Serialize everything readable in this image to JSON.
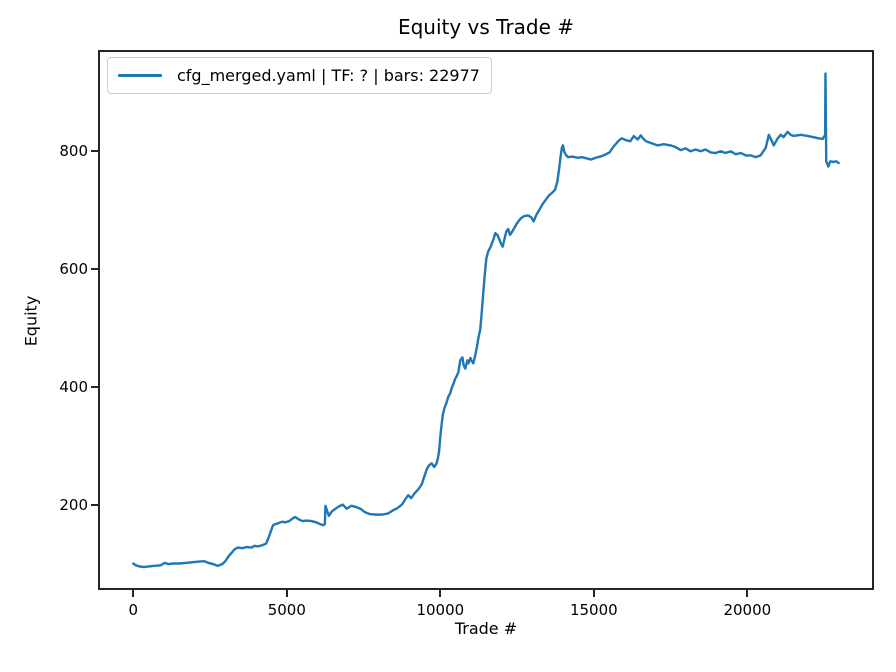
{
  "title": "Equity vs Trade #",
  "legend": {
    "label": "cfg_merged.yaml | TF: ? | bars: 22977"
  },
  "colors": {
    "line": "#1f77b4",
    "spine": "#262626",
    "text": "#000000",
    "legend_border": "#cccccc",
    "background": "#ffffff"
  },
  "chart_data": {
    "type": "line",
    "title": "Equity vs Trade #",
    "xlabel": "Trade #",
    "ylabel": "Equity",
    "grid": false,
    "legend_position": "upper left",
    "xlim": [
      -1149,
      24126
    ],
    "ylim": [
      55,
      972
    ],
    "x_ticks": [
      0,
      5000,
      10000,
      15000,
      20000
    ],
    "y_ticks": [
      200,
      400,
      600,
      800
    ],
    "series": [
      {
        "name": "cfg_merged.yaml | TF: ? | bars: 22977",
        "color": "#1f77b4",
        "points": [
          [
            0,
            100
          ],
          [
            80,
            97
          ],
          [
            200,
            95
          ],
          [
            350,
            94
          ],
          [
            500,
            95
          ],
          [
            700,
            96
          ],
          [
            900,
            97
          ],
          [
            1020,
            101
          ],
          [
            1150,
            99
          ],
          [
            1300,
            100
          ],
          [
            1500,
            100
          ],
          [
            1700,
            101
          ],
          [
            1900,
            102
          ],
          [
            2100,
            103
          ],
          [
            2300,
            104
          ],
          [
            2450,
            101
          ],
          [
            2600,
            99
          ],
          [
            2750,
            96
          ],
          [
            2900,
            99
          ],
          [
            3000,
            104
          ],
          [
            3100,
            112
          ],
          [
            3200,
            118
          ],
          [
            3300,
            124
          ],
          [
            3400,
            127
          ],
          [
            3550,
            126
          ],
          [
            3700,
            128
          ],
          [
            3850,
            127
          ],
          [
            3950,
            130
          ],
          [
            4050,
            129
          ],
          [
            4200,
            131
          ],
          [
            4330,
            134
          ],
          [
            4400,
            143
          ],
          [
            4470,
            153
          ],
          [
            4530,
            162
          ],
          [
            4570,
            166
          ],
          [
            4650,
            167
          ],
          [
            4750,
            169
          ],
          [
            4850,
            171
          ],
          [
            4950,
            170
          ],
          [
            5080,
            172
          ],
          [
            5180,
            176
          ],
          [
            5260,
            179
          ],
          [
            5330,
            177
          ],
          [
            5420,
            174
          ],
          [
            5520,
            172
          ],
          [
            5650,
            173
          ],
          [
            5800,
            172
          ],
          [
            5950,
            170
          ],
          [
            6080,
            167
          ],
          [
            6180,
            165
          ],
          [
            6240,
            167
          ],
          [
            6260,
            198
          ],
          [
            6310,
            190
          ],
          [
            6370,
            181
          ],
          [
            6460,
            188
          ],
          [
            6560,
            192
          ],
          [
            6700,
            197
          ],
          [
            6820,
            200
          ],
          [
            6950,
            193
          ],
          [
            7100,
            198
          ],
          [
            7250,
            196
          ],
          [
            7400,
            193
          ],
          [
            7550,
            187
          ],
          [
            7700,
            184
          ],
          [
            7900,
            183
          ],
          [
            8100,
            183
          ],
          [
            8300,
            185
          ],
          [
            8450,
            190
          ],
          [
            8600,
            194
          ],
          [
            8750,
            200
          ],
          [
            8870,
            210
          ],
          [
            8960,
            216
          ],
          [
            9050,
            211
          ],
          [
            9160,
            219
          ],
          [
            9300,
            227
          ],
          [
            9400,
            235
          ],
          [
            9480,
            248
          ],
          [
            9560,
            260
          ],
          [
            9640,
            267
          ],
          [
            9720,
            270
          ],
          [
            9800,
            264
          ],
          [
            9870,
            269
          ],
          [
            9920,
            278
          ],
          [
            9960,
            290
          ],
          [
            10000,
            315
          ],
          [
            10040,
            335
          ],
          [
            10080,
            352
          ],
          [
            10130,
            363
          ],
          [
            10195,
            372
          ],
          [
            10260,
            383
          ],
          [
            10330,
            390
          ],
          [
            10370,
            398
          ],
          [
            10420,
            404
          ],
          [
            10490,
            414
          ],
          [
            10540,
            419
          ],
          [
            10590,
            425
          ],
          [
            10650,
            445
          ],
          [
            10720,
            450
          ],
          [
            10760,
            437
          ],
          [
            10815,
            431
          ],
          [
            10880,
            445
          ],
          [
            10920,
            440
          ],
          [
            10980,
            449
          ],
          [
            11010,
            445
          ],
          [
            11075,
            440
          ],
          [
            11140,
            454
          ],
          [
            11205,
            471
          ],
          [
            11240,
            483
          ],
          [
            11300,
            497
          ],
          [
            11340,
            520
          ],
          [
            11400,
            560
          ],
          [
            11450,
            592
          ],
          [
            11500,
            618
          ],
          [
            11560,
            630
          ],
          [
            11640,
            638
          ],
          [
            11730,
            650
          ],
          [
            11790,
            661
          ],
          [
            11860,
            658
          ],
          [
            11910,
            652
          ],
          [
            11970,
            644
          ],
          [
            12030,
            638
          ],
          [
            12090,
            651
          ],
          [
            12150,
            664
          ],
          [
            12210,
            668
          ],
          [
            12270,
            658
          ],
          [
            12370,
            666
          ],
          [
            12500,
            678
          ],
          [
            12620,
            686
          ],
          [
            12730,
            690
          ],
          [
            12860,
            691
          ],
          [
            12960,
            688
          ],
          [
            13040,
            681
          ],
          [
            13130,
            692
          ],
          [
            13230,
            701
          ],
          [
            13340,
            711
          ],
          [
            13440,
            718
          ],
          [
            13540,
            725
          ],
          [
            13650,
            730
          ],
          [
            13740,
            735
          ],
          [
            13810,
            748
          ],
          [
            13870,
            770
          ],
          [
            13920,
            792
          ],
          [
            13960,
            806
          ],
          [
            13995,
            810
          ],
          [
            14040,
            799
          ],
          [
            14090,
            794
          ],
          [
            14160,
            790
          ],
          [
            14310,
            791
          ],
          [
            14460,
            789
          ],
          [
            14610,
            790
          ],
          [
            14760,
            788
          ],
          [
            14910,
            786
          ],
          [
            15060,
            789
          ],
          [
            15210,
            791
          ],
          [
            15360,
            794
          ],
          [
            15510,
            798
          ],
          [
            15660,
            809
          ],
          [
            15810,
            818
          ],
          [
            15910,
            822
          ],
          [
            16040,
            819
          ],
          [
            16190,
            817
          ],
          [
            16300,
            826
          ],
          [
            16430,
            820
          ],
          [
            16530,
            827
          ],
          [
            16600,
            822
          ],
          [
            16700,
            817
          ],
          [
            16860,
            814
          ],
          [
            17080,
            810
          ],
          [
            17280,
            812
          ],
          [
            17500,
            810
          ],
          [
            17670,
            807
          ],
          [
            17830,
            802
          ],
          [
            17990,
            805
          ],
          [
            18150,
            800
          ],
          [
            18320,
            803
          ],
          [
            18480,
            800
          ],
          [
            18640,
            803
          ],
          [
            18810,
            798
          ],
          [
            18970,
            797
          ],
          [
            19130,
            800
          ],
          [
            19290,
            797
          ],
          [
            19460,
            800
          ],
          [
            19620,
            795
          ],
          [
            19790,
            797
          ],
          [
            19950,
            793
          ],
          [
            20110,
            793
          ],
          [
            20270,
            790
          ],
          [
            20430,
            793
          ],
          [
            20600,
            806
          ],
          [
            20700,
            828
          ],
          [
            20830,
            814
          ],
          [
            20860,
            810
          ],
          [
            20990,
            822
          ],
          [
            21090,
            828
          ],
          [
            21180,
            824
          ],
          [
            21310,
            833
          ],
          [
            21410,
            828
          ],
          [
            21510,
            826
          ],
          [
            21740,
            828
          ],
          [
            21960,
            826
          ],
          [
            22160,
            824
          ],
          [
            22320,
            822
          ],
          [
            22450,
            821
          ],
          [
            22500,
            825
          ],
          [
            22535,
            827
          ],
          [
            22545,
            932
          ],
          [
            22560,
            850
          ],
          [
            22570,
            783
          ],
          [
            22640,
            774
          ],
          [
            22700,
            783
          ],
          [
            22800,
            782
          ],
          [
            22900,
            783
          ],
          [
            22977,
            780
          ]
        ]
      }
    ]
  }
}
